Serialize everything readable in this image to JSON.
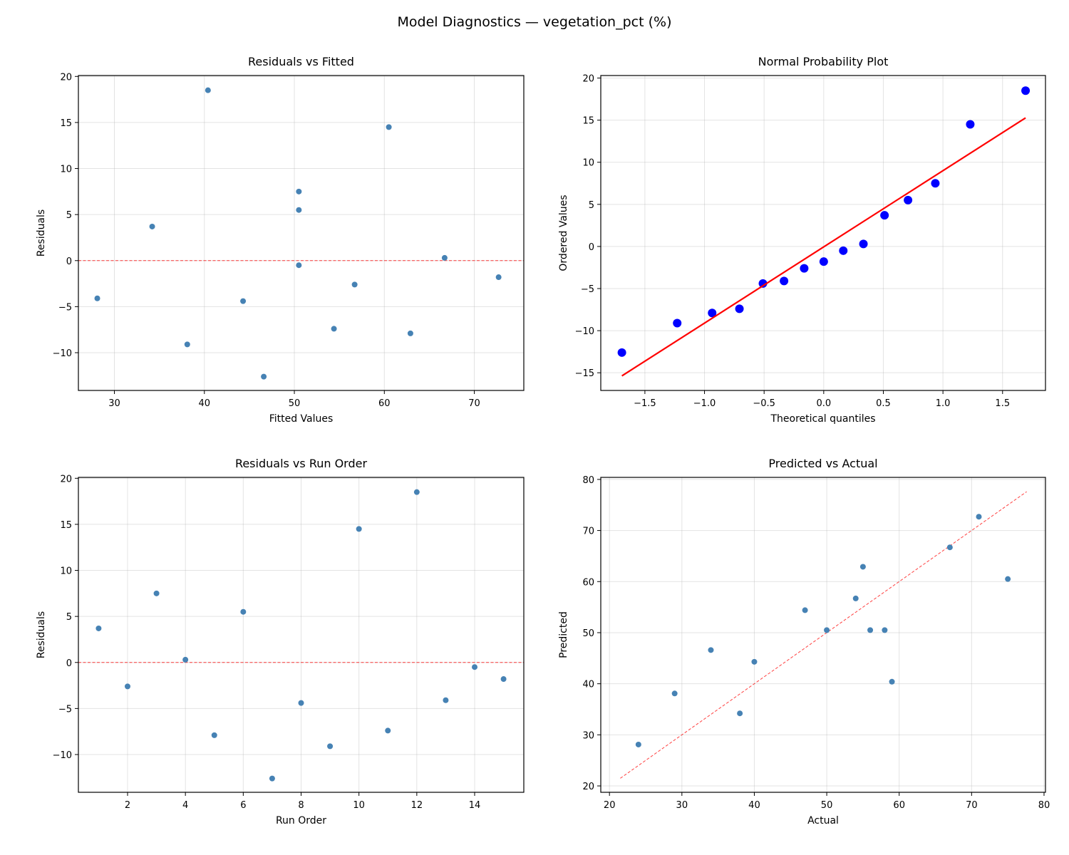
{
  "title": "Model Diagnostics — vegetation_pct (%)",
  "chart_data": [
    {
      "type": "scatter",
      "title": "Residuals vs Fitted",
      "xlabel": "Fitted Values",
      "ylabel": "Residuals",
      "xlim": [
        26.0,
        75.5
      ],
      "ylim": [
        -14.1,
        20.1
      ],
      "xticks": [
        30,
        40,
        50,
        60,
        70
      ],
      "yticks": [
        -10,
        -5,
        0,
        5,
        10,
        15,
        20
      ],
      "grid": true,
      "marker_color": "#4682b4",
      "x": [
        34.2,
        56.7,
        50.5,
        66.7,
        62.9,
        50.5,
        46.6,
        44.3,
        38.1,
        60.5,
        54.4,
        40.4,
        28.1,
        50.5,
        72.7
      ],
      "y": [
        3.7,
        -2.6,
        7.5,
        0.3,
        -7.9,
        5.5,
        -12.6,
        -4.4,
        -9.1,
        14.5,
        -7.4,
        18.5,
        -4.1,
        -0.5,
        -1.8
      ],
      "reference_line": {
        "kind": "horizontal",
        "value": 0,
        "style": "dashed",
        "color": "#ff0000"
      }
    },
    {
      "type": "scatter",
      "title": "Normal Probability Plot",
      "xlabel": "Theoretical quantiles",
      "ylabel": "Ordered Values",
      "xlim": [
        -1.87,
        1.86
      ],
      "ylim": [
        -17.1,
        20.3
      ],
      "xticks": [
        -1.5,
        -1.0,
        -0.5,
        0.0,
        0.5,
        1.0,
        1.5
      ],
      "yticks": [
        -15,
        -10,
        -5,
        0,
        5,
        10,
        15,
        20
      ],
      "grid": true,
      "marker_color": "#0000ff",
      "x": [
        -1.693,
        -1.229,
        -0.936,
        -0.707,
        -0.51,
        -0.333,
        -0.164,
        0.0,
        0.164,
        0.333,
        0.51,
        0.707,
        0.936,
        1.229,
        1.693
      ],
      "y": [
        -12.6,
        -9.1,
        -7.9,
        -7.4,
        -4.4,
        -4.1,
        -2.6,
        -1.8,
        -0.5,
        0.3,
        3.7,
        5.5,
        7.5,
        14.5,
        18.5
      ],
      "reference_line": {
        "kind": "fit",
        "slope": 9.05,
        "intercept": -0.05,
        "style": "solid",
        "color": "#ff0000"
      }
    },
    {
      "type": "scatter",
      "title": "Residuals vs Run Order",
      "xlabel": "Run Order",
      "ylabel": "Residuals",
      "xlim": [
        0.3,
        15.7
      ],
      "ylim": [
        -14.1,
        20.1
      ],
      "xticks": [
        2,
        4,
        6,
        8,
        10,
        12,
        14
      ],
      "yticks": [
        -10,
        -5,
        0,
        5,
        10,
        15,
        20
      ],
      "grid": true,
      "marker_color": "#4682b4",
      "x": [
        1,
        2,
        3,
        4,
        5,
        6,
        7,
        8,
        9,
        10,
        11,
        12,
        13,
        14,
        15
      ],
      "y": [
        3.7,
        -2.6,
        7.5,
        0.3,
        -7.9,
        5.5,
        -12.6,
        -4.4,
        -9.1,
        14.5,
        -7.4,
        18.5,
        -4.1,
        -0.5,
        -1.8
      ],
      "reference_line": {
        "kind": "horizontal",
        "value": 0,
        "style": "dashed",
        "color": "#ff0000"
      }
    },
    {
      "type": "scatter",
      "title": "Predicted vs Actual",
      "xlabel": "Actual",
      "ylabel": "Predicted",
      "xlim": [
        18.8,
        80.2
      ],
      "ylim": [
        18.75,
        80.4
      ],
      "xticks": [
        20,
        30,
        40,
        50,
        60,
        70,
        80
      ],
      "yticks": [
        20,
        30,
        40,
        50,
        60,
        70,
        80
      ],
      "grid": true,
      "marker_color": "#4682b4",
      "x": [
        38,
        54,
        58,
        67,
        55,
        56,
        34,
        40,
        29,
        75,
        47,
        59,
        24,
        50,
        71
      ],
      "y": [
        34.2,
        56.7,
        50.5,
        66.7,
        62.9,
        50.5,
        46.6,
        44.3,
        38.1,
        60.5,
        54.4,
        40.4,
        28.1,
        50.5,
        72.7
      ],
      "reference_line": {
        "kind": "diagonal",
        "from": 21.5,
        "to": 77.6,
        "style": "dashed",
        "color": "#ff0000"
      }
    }
  ]
}
